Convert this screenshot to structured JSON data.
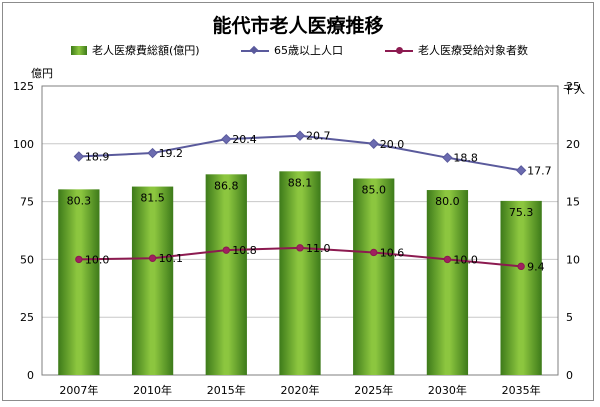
{
  "title": "能代市老人医療推移",
  "legend": {
    "bar": "老人医療費総額(億円)",
    "pop": "65歳以上人口",
    "recipients": "老人医療受給対象者数"
  },
  "units": {
    "left": "億円",
    "right": "千人"
  },
  "colors": {
    "bar_dark": "#3d7a1a",
    "bar_light": "#8cc63f",
    "pop_line": "#5a5a9c",
    "pop_marker": "#6b6bb0",
    "recipients_line": "#8c1a50",
    "recipients_marker": "#a0205f",
    "grid": "#c8c8c8",
    "plot_border": "#7f7f7f"
  },
  "chart_data": {
    "type": "bar",
    "title": "能代市老人医療推移",
    "categories": [
      "2007年",
      "2010年",
      "2015年",
      "2020年",
      "2025年",
      "2030年",
      "2035年"
    ],
    "series": [
      {
        "name": "老人医療費総額(億円)",
        "type": "bar",
        "axis": "left",
        "values": [
          80.3,
          81.5,
          86.8,
          88.1,
          85.0,
          80.0,
          75.3
        ]
      },
      {
        "name": "65歳以上人口",
        "type": "line",
        "axis": "right",
        "marker": "diamond",
        "values": [
          18.9,
          19.2,
          20.4,
          20.7,
          20.0,
          18.8,
          17.7
        ]
      },
      {
        "name": "老人医療受給対象者数",
        "type": "line",
        "axis": "right",
        "marker": "circle",
        "values": [
          10.0,
          10.1,
          10.8,
          11.0,
          10.6,
          10.0,
          9.4
        ]
      }
    ],
    "y_left": {
      "label": "億円",
      "min": 0,
      "max": 125,
      "ticks": [
        0,
        25,
        50,
        75,
        100,
        125
      ]
    },
    "y_right": {
      "label": "千人",
      "min": 0,
      "max": 25,
      "ticks": [
        0,
        5,
        10,
        15,
        20,
        25
      ]
    },
    "grid": true,
    "legend_position": "top"
  }
}
